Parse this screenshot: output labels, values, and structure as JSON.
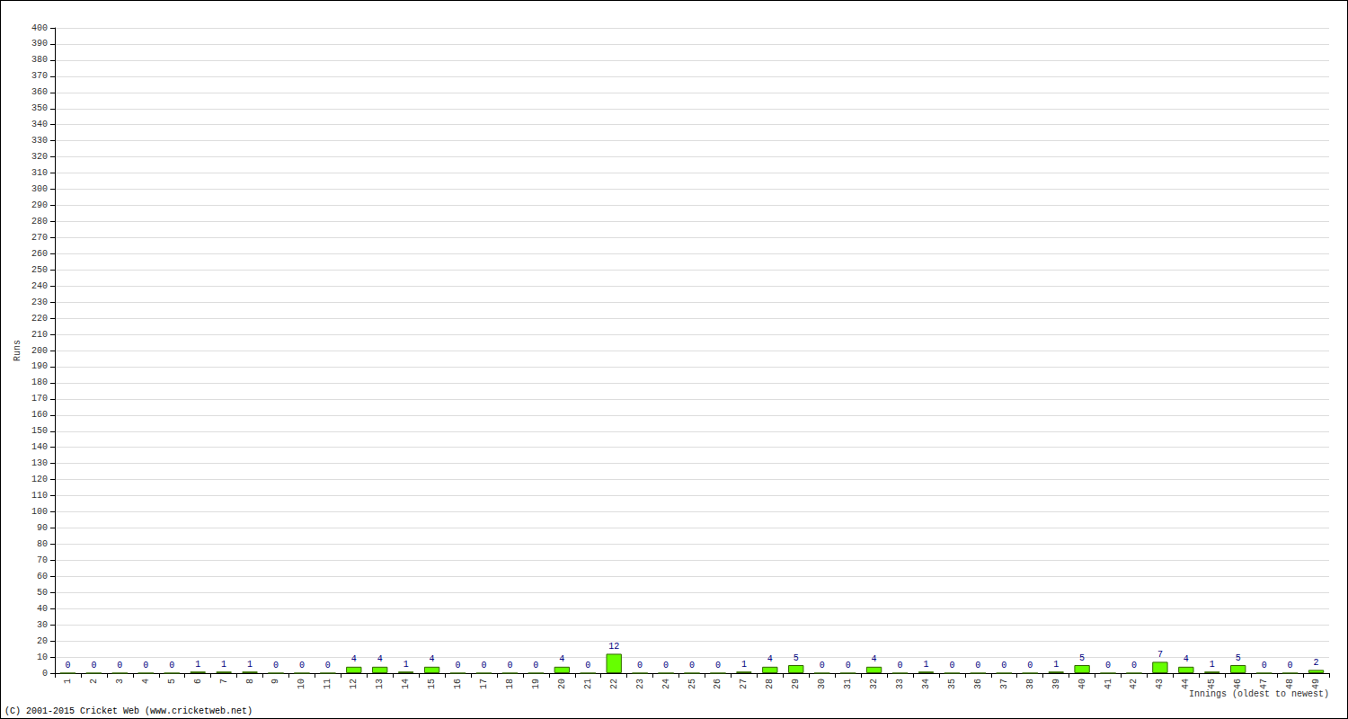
{
  "chart_data": {
    "type": "bar",
    "xlabel": "Innings (oldest to newest)",
    "ylabel": "Runs",
    "annotations": [
      "(C) 2001-2015 Cricket Web (www.cricketweb.net)"
    ],
    "categories": [
      "1",
      "2",
      "3",
      "4",
      "5",
      "6",
      "7",
      "8",
      "9",
      "10",
      "11",
      "12",
      "13",
      "14",
      "15",
      "16",
      "17",
      "18",
      "19",
      "20",
      "21",
      "22",
      "23",
      "24",
      "25",
      "26",
      "27",
      "28",
      "29",
      "30",
      "31",
      "32",
      "33",
      "34",
      "35",
      "36",
      "37",
      "38",
      "39",
      "40",
      "41",
      "42",
      "43",
      "44",
      "45",
      "46",
      "47",
      "48",
      "49"
    ],
    "values": [
      0,
      0,
      0,
      0,
      0,
      1,
      1,
      1,
      0,
      0,
      0,
      4,
      4,
      1,
      4,
      0,
      0,
      0,
      0,
      4,
      0,
      12,
      0,
      0,
      0,
      0,
      1,
      4,
      5,
      0,
      0,
      4,
      0,
      1,
      0,
      0,
      0,
      0,
      1,
      5,
      0,
      0,
      7,
      4,
      1,
      5,
      0,
      0,
      2
    ],
    "color": "#66ff00",
    "ylim": [
      0,
      400
    ],
    "yticks": [
      0,
      10,
      20,
      30,
      40,
      50,
      60,
      70,
      80,
      90,
      100,
      110,
      120,
      130,
      140,
      150,
      160,
      170,
      180,
      190,
      200,
      210,
      220,
      230,
      240,
      250,
      260,
      270,
      280,
      290,
      300,
      310,
      320,
      330,
      340,
      350,
      360,
      370,
      380,
      390,
      400
    ],
    "grid": true,
    "data_labels": true
  }
}
